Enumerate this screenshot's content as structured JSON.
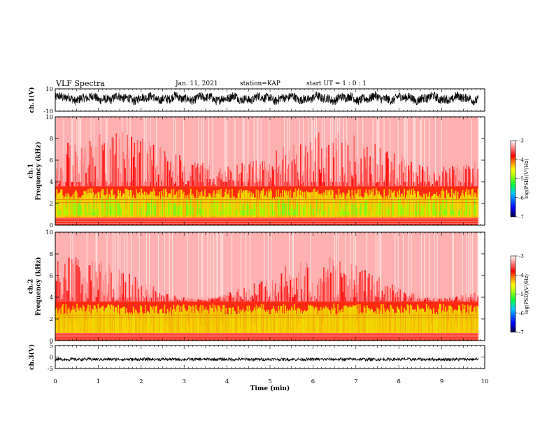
{
  "header": {
    "title": "VLF Spectra",
    "date": "Jan. 11, 2021",
    "station": "station=KAP",
    "start": "start UT =  1 : 0  : 1"
  },
  "chart_data": [
    {
      "type": "line",
      "id": "ch1-waveform",
      "ylabel": "ch.1(V)",
      "ylim": [
        -10,
        10
      ],
      "yticks": [
        "10",
        "-10"
      ],
      "xlim": [
        0,
        10
      ],
      "description_values": {
        "mean": 1.5,
        "amplitude": 5
      }
    },
    {
      "type": "heatmap",
      "id": "ch1-spectrogram",
      "ylabel": "ch.1\nFrequency (kHz)",
      "ylim": [
        0,
        10
      ],
      "yticks": [
        "0",
        "2",
        "4",
        "6",
        "8",
        "10"
      ],
      "xlim": [
        0,
        9.85
      ],
      "colorbar": {
        "label": "log(PSD)(V²/Hz)",
        "range": [
          -7,
          -3
        ],
        "ticks": [
          "-3",
          "-4",
          "-5",
          "-6",
          "-7"
        ]
      },
      "colors": [
        "#000080",
        "#0000ff",
        "#00c0ff",
        "#00ff00",
        "#ffff00",
        "#ff0000",
        "#ffffff"
      ]
    },
    {
      "type": "heatmap",
      "id": "ch2-spectrogram",
      "ylabel": "ch.2\nFrequency (kHz)",
      "ylim": [
        0,
        10
      ],
      "yticks": [
        "0",
        "2",
        "4",
        "6",
        "8",
        "10"
      ],
      "xlim": [
        0,
        9.85
      ],
      "colorbar": {
        "label": "log(PSD)(V²/Hz)",
        "range": [
          -7,
          -3
        ],
        "ticks": [
          "-3",
          "-4",
          "-5",
          "-6",
          "-7"
        ]
      }
    },
    {
      "type": "line",
      "id": "ch3-waveform",
      "ylabel": "ch.3(V)",
      "ylim": [
        -5,
        5
      ],
      "yticks": [
        "5",
        "0",
        "-5"
      ],
      "xlim": [
        0,
        10
      ],
      "xlabel": "Time (min)",
      "xticks": [
        "0",
        "1",
        "2",
        "3",
        "4",
        "5",
        "6",
        "7",
        "8",
        "9",
        "10"
      ]
    }
  ]
}
